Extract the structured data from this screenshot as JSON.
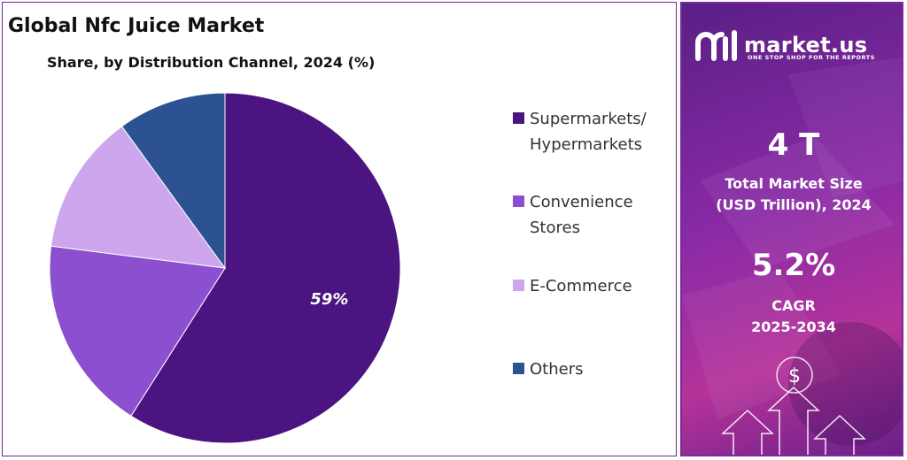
{
  "chart_data": {
    "type": "pie",
    "title": "Global Nfc Juice Market",
    "subtitle": "Share, by Distribution Channel, 2024 (%)",
    "categories": [
      "Supermarkets/ Hypermarkets",
      "Convenience Stores",
      "E-Commerce",
      "Others"
    ],
    "values": [
      59,
      18,
      13,
      10
    ],
    "colors": [
      "#4b1480",
      "#8b4fcf",
      "#cda6ed",
      "#2c5291"
    ],
    "data_labels": [
      "59%",
      "",
      "",
      ""
    ],
    "legend_position": "right",
    "legend_lines": [
      [
        "Supermarkets/",
        "Hypermarkets"
      ],
      [
        "Convenience",
        "Stores"
      ],
      [
        "E-Commerce"
      ],
      [
        "Others"
      ]
    ]
  },
  "brand": {
    "name": "market.us",
    "tagline": "ONE STOP SHOP FOR THE REPORTS",
    "logo_icon": "market-us-logo-icon"
  },
  "stats": {
    "market_size_value": "4 T",
    "market_size_label_line1": "Total Market Size",
    "market_size_label_line2": "(USD Trillion), 2024",
    "cagr_value": "5.2%",
    "cagr_label_line1": "CAGR",
    "cagr_label_line2": "2025-2034"
  },
  "decor": {
    "dollar_symbol": "$",
    "arrow_icon": "up-arrow-icon"
  }
}
